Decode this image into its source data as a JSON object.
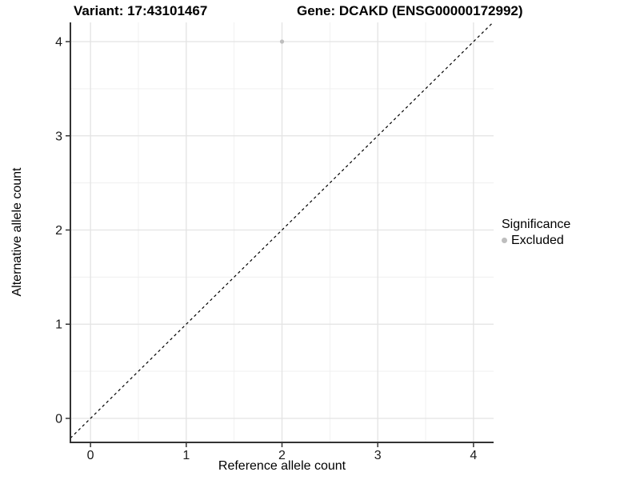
{
  "figure": {
    "background": "#FFFFFF",
    "title_variant": "Variant: 17:43101467",
    "title_gene": "Gene: DCAKD (ENSG00000172992)"
  },
  "chart_data": {
    "type": "scatter",
    "title_left": "Variant: 17:43101467",
    "title_right": "Gene: DCAKD (ENSG00000172992)",
    "xlabel": "Reference allele count",
    "ylabel": "Alternative allele count",
    "xlim": [
      -0.21,
      4.21
    ],
    "ylim": [
      -0.255,
      4.204
    ],
    "xticks": [
      0,
      1,
      2,
      3,
      4
    ],
    "yticks": [
      0,
      1,
      2,
      3,
      4
    ],
    "minor_grid_step": 0.5,
    "grid": "major+minor",
    "reference_line": {
      "type": "identity",
      "slope": 1,
      "intercept": 0,
      "style": "dashed",
      "color": "#000000"
    },
    "series": [
      {
        "name": "Excluded",
        "color": "#BEBEBE",
        "points": [
          [
            2,
            4
          ]
        ]
      }
    ],
    "legend": {
      "title": "Significance",
      "position": "right",
      "items": [
        {
          "label": "Excluded",
          "color": "#BEBEBE"
        }
      ]
    }
  },
  "colors": {
    "grid_major": "#E3E3E3",
    "grid_minor": "#EFEFEF",
    "axis_line": "#333333",
    "tick_mark": "#333333",
    "tick_label": "#1A1A1A",
    "text": "#000000"
  }
}
